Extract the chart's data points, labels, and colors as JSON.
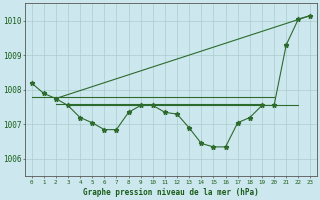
{
  "title": "Graphe pression niveau de la mer (hPa)",
  "ylim": [
    1005.5,
    1010.5
  ],
  "xlim": [
    -0.5,
    23.5
  ],
  "yticks": [
    1006,
    1007,
    1008,
    1009,
    1010
  ],
  "xticks": [
    0,
    1,
    2,
    3,
    4,
    5,
    6,
    7,
    8,
    9,
    10,
    11,
    12,
    13,
    14,
    15,
    16,
    17,
    18,
    19,
    20,
    21,
    22,
    23
  ],
  "background_color": "#cce8ee",
  "grid_color": "#aacccc",
  "line_color": "#2d6a2d",
  "title_color": "#1a5c1a",
  "main_data_x": [
    0,
    1,
    2,
    3,
    4,
    5,
    6,
    7,
    8,
    9,
    10,
    11,
    12,
    13,
    14,
    15,
    16,
    17,
    18,
    19,
    20,
    21,
    22,
    23
  ],
  "main_data_y": [
    1008.2,
    1007.9,
    1007.75,
    1007.55,
    1007.2,
    1007.05,
    1006.85,
    1006.85,
    1007.35,
    1007.55,
    1007.55,
    1007.35,
    1007.3,
    1006.9,
    1006.45,
    1006.35,
    1006.35,
    1007.05,
    1007.2,
    1007.55,
    1007.55,
    1009.3,
    1010.05,
    1010.15
  ],
  "line1_x": [
    0,
    20
  ],
  "line1_y": [
    1007.8,
    1007.8
  ],
  "line2_x": [
    2,
    19
  ],
  "line2_y": [
    1007.6,
    1007.6
  ],
  "line3_x": [
    3,
    22
  ],
  "line3_y": [
    1007.55,
    1007.55
  ],
  "trend_x": [
    2,
    23
  ],
  "trend_y": [
    1007.75,
    1010.15
  ],
  "figsize": [
    3.2,
    2.0
  ],
  "dpi": 100
}
